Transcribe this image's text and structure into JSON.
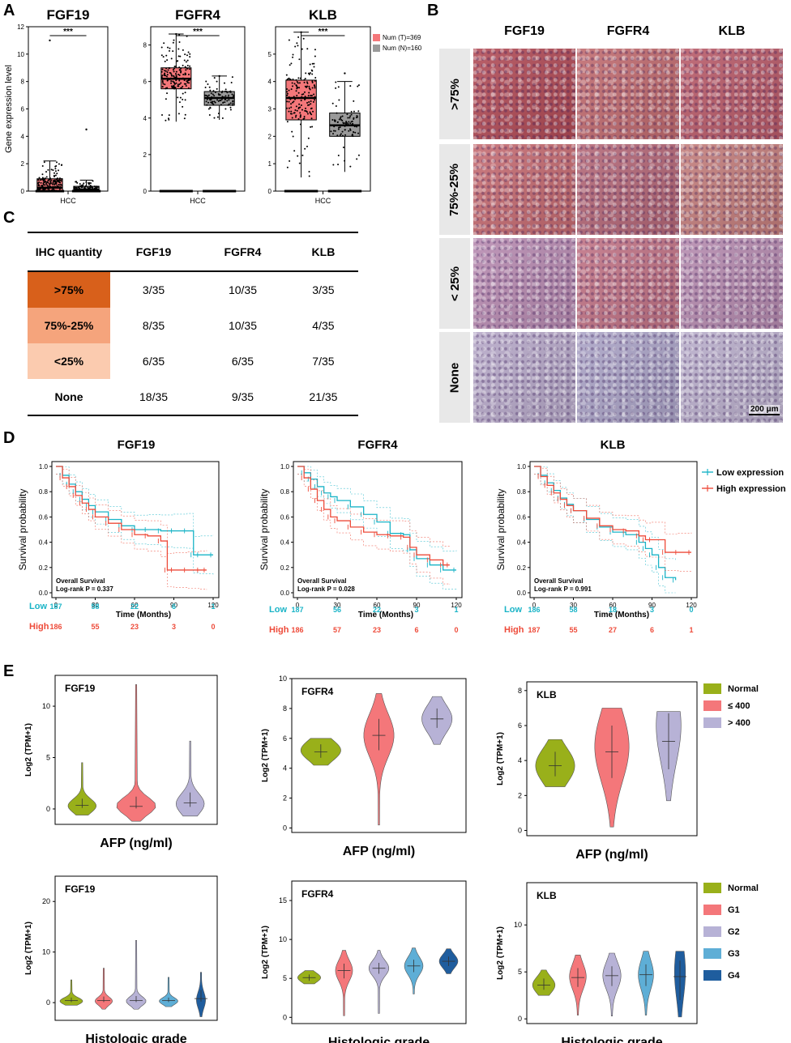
{
  "panels": {
    "A": "A",
    "B": "B",
    "C": "C",
    "D": "D",
    "E": "E"
  },
  "chart_data": [
    {
      "id": "boxA1",
      "type": "box",
      "title": "FGF19",
      "xlabel": "HCC",
      "ylabel": "Gene expression level",
      "ylim": [
        0,
        12
      ],
      "yticks": [
        "0",
        "2",
        "4",
        "6",
        "8",
        "10",
        "12"
      ],
      "significance": "***",
      "series": [
        {
          "name": "Num (T)=369",
          "color": "#f4777a",
          "q1": 0.05,
          "median": 0.25,
          "q3": 0.9,
          "wlow": 0,
          "whigh": 2.2,
          "max": 11.0
        },
        {
          "name": "Num (N)=160",
          "color": "#9a9a9a",
          "q1": 0.02,
          "median": 0.1,
          "q3": 0.35,
          "wlow": 0,
          "whigh": 0.8,
          "max": 4.5
        }
      ]
    },
    {
      "id": "boxA2",
      "type": "box",
      "title": "FGFR4",
      "xlabel": "HCC",
      "ylabel": "",
      "ylim": [
        0,
        9
      ],
      "yticks": [
        "0",
        "2",
        "4",
        "6",
        "8"
      ],
      "significance": "***",
      "series": [
        {
          "name": "Num (T)=369",
          "color": "#f4777a",
          "q1": 5.6,
          "median": 6.15,
          "q3": 6.75,
          "wlow": 3.8,
          "whigh": 8.6,
          "max": 8.6
        },
        {
          "name": "Num (N)=160",
          "color": "#9a9a9a",
          "q1": 4.7,
          "median": 5.1,
          "q3": 5.45,
          "wlow": 3.9,
          "whigh": 6.3,
          "max": 6.3
        }
      ]
    },
    {
      "id": "boxA3",
      "type": "box",
      "title": "KLB",
      "xlabel": "HCC",
      "ylabel": "",
      "ylim": [
        0,
        6
      ],
      "yticks": [
        "0",
        "1",
        "2",
        "3",
        "4",
        "5"
      ],
      "significance": "***",
      "series": [
        {
          "name": "Num (T)=369",
          "color": "#f4777a",
          "q1": 2.6,
          "median": 3.4,
          "q3": 4.05,
          "wlow": 0.5,
          "whigh": 5.8,
          "max": 5.8
        },
        {
          "name": "Num (N)=160",
          "color": "#9a9a9a",
          "q1": 2.0,
          "median": 2.4,
          "q3": 2.85,
          "wlow": 0.7,
          "whigh": 4.0,
          "max": 4.3
        }
      ]
    },
    {
      "id": "kmD1",
      "type": "line",
      "title": "FGF19",
      "xlabel": "Time (Months)",
      "ylabel": "Survival probability",
      "xlim": [
        0,
        120
      ],
      "ylim": [
        0,
        1
      ],
      "xticks": [
        "0",
        "30",
        "60",
        "90",
        "120"
      ],
      "yticks": [
        "0.0",
        "0.2",
        "0.4",
        "0.6",
        "0.8",
        "1.0"
      ],
      "annotation": [
        "Overall Survival",
        "Log-rank P = 0.337"
      ],
      "series": [
        {
          "name": "Low expression",
          "color": "#1ab4c7",
          "x": [
            0,
            5,
            10,
            15,
            20,
            25,
            30,
            40,
            50,
            60,
            70,
            80,
            90,
            100,
            105,
            110,
            120
          ],
          "y": [
            1.0,
            0.93,
            0.86,
            0.8,
            0.74,
            0.69,
            0.64,
            0.58,
            0.53,
            0.5,
            0.5,
            0.49,
            0.49,
            0.49,
            0.3,
            0.3,
            0.3
          ]
        },
        {
          "name": "High expression",
          "color": "#ee4b3a",
          "x": [
            0,
            5,
            10,
            15,
            20,
            25,
            30,
            40,
            50,
            60,
            70,
            80,
            85,
            90,
            100,
            110,
            115
          ],
          "y": [
            1.0,
            0.91,
            0.84,
            0.77,
            0.71,
            0.66,
            0.6,
            0.55,
            0.5,
            0.46,
            0.45,
            0.41,
            0.18,
            0.18,
            0.18,
            0.18,
            0.18
          ]
        }
      ],
      "risk_table": {
        "Low": [
          "187",
          "58",
          "22",
          "6",
          "1"
        ],
        "High": [
          "186",
          "55",
          "23",
          "3",
          "0"
        ]
      }
    },
    {
      "id": "kmD2",
      "type": "line",
      "title": "FGFR4",
      "xlabel": "Time (Months)",
      "ylabel": "Survival probability",
      "xlim": [
        0,
        120
      ],
      "ylim": [
        0,
        1
      ],
      "xticks": [
        "0",
        "30",
        "60",
        "90",
        "120"
      ],
      "yticks": [
        "0.0",
        "0.2",
        "0.4",
        "0.6",
        "0.8",
        "1.0"
      ],
      "annotation": [
        "Overall Survival",
        "Log-rank P = 0.028"
      ],
      "series": [
        {
          "name": "Low expression",
          "color": "#1ab4c7",
          "x": [
            0,
            5,
            10,
            15,
            20,
            25,
            30,
            40,
            50,
            60,
            70,
            80,
            85,
            90,
            100,
            110,
            120
          ],
          "y": [
            1.0,
            0.95,
            0.9,
            0.84,
            0.79,
            0.76,
            0.73,
            0.68,
            0.62,
            0.56,
            0.47,
            0.46,
            0.34,
            0.27,
            0.22,
            0.18,
            0.18
          ]
        },
        {
          "name": "High expression",
          "color": "#ee4b3a",
          "x": [
            0,
            5,
            10,
            15,
            20,
            25,
            30,
            40,
            50,
            60,
            70,
            80,
            85,
            90,
            100,
            110,
            115
          ],
          "y": [
            1.0,
            0.91,
            0.82,
            0.73,
            0.66,
            0.6,
            0.57,
            0.52,
            0.48,
            0.46,
            0.45,
            0.44,
            0.36,
            0.3,
            0.26,
            0.22,
            0.22
          ]
        }
      ],
      "risk_table": {
        "Low": [
          "187",
          "56",
          "22",
          "3",
          "1"
        ],
        "High": [
          "186",
          "57",
          "23",
          "6",
          "0"
        ]
      }
    },
    {
      "id": "kmD3",
      "type": "line",
      "title": "KLB",
      "xlabel": "Time (Months)",
      "ylabel": "Survival probability",
      "xlim": [
        0,
        120
      ],
      "ylim": [
        0,
        1
      ],
      "xticks": [
        "0",
        "30",
        "60",
        "90",
        "120"
      ],
      "yticks": [
        "0.0",
        "0.2",
        "0.4",
        "0.6",
        "0.8",
        "1.0"
      ],
      "annotation": [
        "Overall Survival",
        "Log-rank P = 0.991"
      ],
      "series": [
        {
          "name": "Low expression",
          "color": "#1ab4c7",
          "x": [
            0,
            5,
            10,
            15,
            20,
            25,
            30,
            40,
            50,
            60,
            70,
            80,
            85,
            90,
            95,
            100,
            108
          ],
          "y": [
            1.0,
            0.93,
            0.87,
            0.81,
            0.75,
            0.7,
            0.65,
            0.58,
            0.52,
            0.48,
            0.46,
            0.4,
            0.35,
            0.3,
            0.2,
            0.12,
            0.1
          ]
        },
        {
          "name": "High expression",
          "color": "#ee4b3a",
          "x": [
            0,
            5,
            10,
            15,
            20,
            25,
            30,
            40,
            50,
            60,
            70,
            80,
            85,
            90,
            100,
            110,
            120
          ],
          "y": [
            1.0,
            0.92,
            0.85,
            0.79,
            0.74,
            0.69,
            0.65,
            0.59,
            0.53,
            0.5,
            0.49,
            0.45,
            0.42,
            0.42,
            0.32,
            0.32,
            0.32
          ]
        }
      ],
      "risk_table": {
        "Low": [
          "186",
          "58",
          "18",
          "3",
          "0"
        ],
        "High": [
          "187",
          "55",
          "27",
          "6",
          "1"
        ]
      }
    },
    {
      "id": "vioE1",
      "type": "violin",
      "title": "FGF19",
      "xlabel": "AFP (ng/ml)",
      "ylabel": "Log2 (TPM+1)",
      "ylim": [
        -1.5,
        13
      ],
      "yticks": [
        "0",
        "5",
        "10"
      ],
      "groups": [
        {
          "name": "Normal",
          "color": "#99b01a",
          "min": -0.6,
          "max": 4.5,
          "median": 0.35,
          "q1": 0.1,
          "q3": 1.0,
          "peak": 0.3,
          "width": 0.6
        },
        {
          "name": "≤ 400",
          "color": "#f4777a",
          "min": -1.2,
          "max": 12.1,
          "median": 0.25,
          "q1": 0.05,
          "q3": 1.2,
          "peak": 0.3,
          "width": 0.85
        },
        {
          "name": "> 400",
          "color": "#b7b2d6",
          "min": -0.7,
          "max": 6.6,
          "median": 0.6,
          "q1": 0.2,
          "q3": 1.6,
          "peak": 0.5,
          "width": 0.6
        }
      ]
    },
    {
      "id": "vioE2",
      "type": "violin",
      "title": "FGFR4",
      "xlabel": "AFP (ng/ml)",
      "ylabel": "Log2 (TPM+1)",
      "ylim": [
        -0.3,
        10
      ],
      "yticks": [
        "0",
        "2",
        "4",
        "6",
        "8",
        "10"
      ],
      "groups": [
        {
          "name": "Normal",
          "color": "#99b01a",
          "min": 4.2,
          "max": 6.0,
          "median": 5.1,
          "q1": 4.7,
          "q3": 5.6,
          "peak": 5.2,
          "width": 0.8
        },
        {
          "name": "≤ 400",
          "color": "#f4777a",
          "min": 0.2,
          "max": 9.0,
          "median": 6.2,
          "q1": 5.2,
          "q3": 7.3,
          "peak": 6.2,
          "width": 0.6
        },
        {
          "name": "> 400",
          "color": "#b7b2d6",
          "min": 5.6,
          "max": 8.8,
          "median": 7.3,
          "q1": 6.7,
          "q3": 8.0,
          "peak": 7.3,
          "width": 0.6
        }
      ]
    },
    {
      "id": "vioE3",
      "type": "violin",
      "title": "KLB",
      "xlabel": "AFP (ng/ml)",
      "ylabel": "Log2 (TPM+1)",
      "ylim": [
        -0.3,
        8.5
      ],
      "yticks": [
        "0",
        "2",
        "4",
        "6",
        "8"
      ],
      "groups": [
        {
          "name": "Normal",
          "color": "#99b01a",
          "min": 2.5,
          "max": 5.2,
          "median": 3.7,
          "q1": 3.1,
          "q3": 4.5,
          "peak": 3.7,
          "width": 0.8
        },
        {
          "name": "≤ 400",
          "color": "#f4777a",
          "min": 0.2,
          "max": 7.0,
          "median": 4.5,
          "q1": 3.0,
          "q3": 6.0,
          "peak": 4.8,
          "width": 0.7
        },
        {
          "name": "> 400",
          "color": "#b7b2d6",
          "min": 1.7,
          "max": 6.8,
          "median": 5.1,
          "q1": 3.5,
          "q3": 6.7,
          "peak": 6.0,
          "width": 0.5
        }
      ]
    },
    {
      "id": "vioE4",
      "type": "violin",
      "title": "FGF19",
      "xlabel": "Histologic grade",
      "ylabel": "Log2 (TPM+1)",
      "ylim": [
        -3.5,
        25
      ],
      "yticks": [
        "0",
        "10",
        "20"
      ],
      "groups": [
        {
          "name": "Normal",
          "color": "#99b01a",
          "min": -0.5,
          "max": 4.5,
          "median": 0.4,
          "q1": 0.1,
          "q3": 1.0,
          "peak": 0.3,
          "width": 0.8
        },
        {
          "name": "G1",
          "color": "#f4777a",
          "min": -1.3,
          "max": 6.8,
          "median": 0.4,
          "q1": 0.1,
          "q3": 1.2,
          "peak": 0.3,
          "width": 0.6
        },
        {
          "name": "G2",
          "color": "#b7b2d6",
          "min": -1.3,
          "max": 12.3,
          "median": 0.4,
          "q1": 0.1,
          "q3": 1.3,
          "peak": 0.3,
          "width": 0.7
        },
        {
          "name": "G3",
          "color": "#5eaed6",
          "min": -0.8,
          "max": 5.0,
          "median": 0.4,
          "q1": 0.1,
          "q3": 1.0,
          "peak": 0.3,
          "width": 0.65
        },
        {
          "name": "G4",
          "color": "#1f5d9e",
          "min": -2.8,
          "max": 6.0,
          "median": 0.8,
          "q1": 0.2,
          "q3": 2.5,
          "peak": 0.5,
          "width": 0.3
        }
      ]
    },
    {
      "id": "vioE5",
      "type": "violin",
      "title": "FGFR4",
      "xlabel": "Histologic grade",
      "ylabel": "Log2 (TPM+1)",
      "ylim": [
        -0.8,
        17.5
      ],
      "yticks": [
        "0",
        "5",
        "10",
        "15"
      ],
      "groups": [
        {
          "name": "Normal",
          "color": "#99b01a",
          "min": 4.3,
          "max": 6.0,
          "median": 5.1,
          "q1": 4.7,
          "q3": 5.5,
          "peak": 5.1,
          "width": 0.75
        },
        {
          "name": "G1",
          "color": "#f4777a",
          "min": 0.2,
          "max": 8.6,
          "median": 6.0,
          "q1": 5.0,
          "q3": 6.9,
          "peak": 6.0,
          "width": 0.55
        },
        {
          "name": "G2",
          "color": "#b7b2d6",
          "min": 0.5,
          "max": 8.6,
          "median": 6.3,
          "q1": 5.6,
          "q3": 7.0,
          "peak": 6.3,
          "width": 0.65
        },
        {
          "name": "G3",
          "color": "#5eaed6",
          "min": 3.0,
          "max": 8.9,
          "median": 6.6,
          "q1": 5.8,
          "q3": 7.4,
          "peak": 6.6,
          "width": 0.6
        },
        {
          "name": "G4",
          "color": "#1f5d9e",
          "min": 5.6,
          "max": 8.8,
          "median": 7.2,
          "q1": 6.6,
          "q3": 7.8,
          "peak": 7.2,
          "width": 0.6
        }
      ]
    },
    {
      "id": "vioE6",
      "type": "violin",
      "title": "KLB",
      "xlabel": "Histologic grade",
      "ylabel": "Log2 (TPM+1)",
      "ylim": [
        -0.5,
        14.5
      ],
      "yticks": [
        "0",
        "5",
        "10"
      ],
      "groups": [
        {
          "name": "Normal",
          "color": "#99b01a",
          "min": 2.5,
          "max": 5.2,
          "median": 3.6,
          "q1": 3.1,
          "q3": 4.3,
          "peak": 3.6,
          "width": 0.75
        },
        {
          "name": "G1",
          "color": "#f4777a",
          "min": 0.4,
          "max": 6.8,
          "median": 4.4,
          "q1": 3.4,
          "q3": 5.4,
          "peak": 4.5,
          "width": 0.55
        },
        {
          "name": "G2",
          "color": "#b7b2d6",
          "min": 0.3,
          "max": 7.0,
          "median": 4.6,
          "q1": 3.5,
          "q3": 5.6,
          "peak": 4.6,
          "width": 0.6
        },
        {
          "name": "G3",
          "color": "#5eaed6",
          "min": 0.4,
          "max": 7.2,
          "median": 4.7,
          "q1": 3.5,
          "q3": 5.8,
          "peak": 4.7,
          "width": 0.5
        },
        {
          "name": "G4",
          "color": "#1f5d9e",
          "min": 0.2,
          "max": 7.2,
          "median": 4.5,
          "q1": 2.0,
          "q3": 6.2,
          "peak": 5.0,
          "width": 0.35
        }
      ]
    }
  ],
  "panelA_legend": [
    {
      "name": "Num (T)=369",
      "color": "#f4777a"
    },
    {
      "name": "Num (N)=160",
      "color": "#9a9a9a"
    }
  ],
  "panelB": {
    "columns": [
      "FGF19",
      "FGFR4",
      "KLB"
    ],
    "rows": [
      ">75%",
      "75%-25%",
      "< 25%",
      "None"
    ],
    "scale_bar": "200 μm",
    "tints": [
      [
        "#b04a55",
        "#c06a6e",
        "#b85a68"
      ],
      [
        "#c46a70",
        "#b36676",
        "#c27c7a"
      ],
      [
        "#b78ab0",
        "#c07284",
        "#b58aae"
      ],
      [
        "#b6a8c8",
        "#aaa3c6",
        "#b9aecb"
      ]
    ]
  },
  "panelC": {
    "headers": [
      "IHC quantity",
      "FGF19",
      "FGFR4",
      "KLB"
    ],
    "rows": [
      {
        "label": ">75%",
        "bg": "#d8601b",
        "values": [
          "3/35",
          "10/35",
          "3/35"
        ]
      },
      {
        "label": "75%-25%",
        "bg": "#f5a47c",
        "values": [
          "8/35",
          "10/35",
          "4/35"
        ]
      },
      {
        "label": "<25%",
        "bg": "#fbcbaf",
        "values": [
          "6/35",
          "6/35",
          "7/35"
        ]
      },
      {
        "label": "None",
        "bg": "#ffffff",
        "values": [
          "18/35",
          "9/35",
          "21/35"
        ]
      }
    ]
  },
  "panelD_legend": [
    {
      "name": "Low expression",
      "color": "#1ab4c7"
    },
    {
      "name": "High expression",
      "color": "#ee4b3a"
    }
  ],
  "risk_labels": {
    "Low": "Low",
    "High": "High"
  },
  "afp_legend": [
    {
      "name": "Normal",
      "color": "#99b01a"
    },
    {
      "name": "≤ 400",
      "color": "#f4777a"
    },
    {
      "name": "> 400",
      "color": "#b7b2d6"
    }
  ],
  "grade_legend": [
    {
      "name": "Normal",
      "color": "#99b01a"
    },
    {
      "name": "G1",
      "color": "#f4777a"
    },
    {
      "name": "G2",
      "color": "#b7b2d6"
    },
    {
      "name": "G3",
      "color": "#5eaed6"
    },
    {
      "name": "G4",
      "color": "#1f5d9e"
    }
  ]
}
